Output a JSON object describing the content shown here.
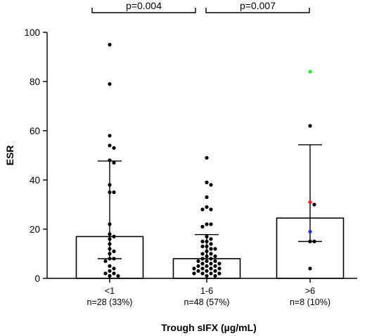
{
  "chart_data": {
    "type": "bar",
    "ylabel": "ESR",
    "xlabel": "Trough sIFX (µg/mL)",
    "ylim": [
      0,
      100
    ],
    "yticks": [
      "0",
      "20",
      "40",
      "60",
      "80",
      "100"
    ],
    "categories": [
      {
        "label": "<1",
        "sublabel": "n=28 (33%)"
      },
      {
        "label": "1-6",
        "sublabel": "n=48 (57%)"
      },
      {
        "label": ">6",
        "sublabel": "n=8 (10%)"
      }
    ],
    "values": [
      17,
      8,
      24.5
    ],
    "error_high": [
      47.7,
      17.8,
      54.3
    ],
    "error_low": [
      8,
      null,
      15
    ],
    "points": [
      [
        95,
        79,
        58,
        54,
        53,
        48,
        47,
        38,
        35,
        35,
        22,
        18,
        17,
        16,
        14,
        12,
        11,
        10,
        8,
        8,
        7,
        5,
        4,
        3,
        2,
        2,
        1,
        1
      ],
      [
        49,
        39,
        38,
        33,
        29,
        28,
        28,
        22,
        22,
        21,
        17,
        16,
        15,
        15,
        14,
        13,
        13,
        12,
        12,
        11,
        10,
        10,
        9,
        9,
        8,
        8,
        7,
        7,
        7,
        6,
        6,
        6,
        5,
        5,
        5,
        4,
        4,
        4,
        4,
        3,
        3,
        3,
        2,
        2,
        2,
        2,
        1,
        1
      ],
      [
        84,
        62,
        31,
        30,
        19,
        15,
        15,
        4
      ]
    ],
    "point_colors": [
      null,
      null,
      [
        "#22ee22",
        null,
        "#ee2222",
        null,
        "#1a2ee8",
        null,
        null,
        null
      ]
    ],
    "significance": [
      {
        "from": 0,
        "to": 1,
        "label": "p=0.004"
      },
      {
        "from": 1,
        "to": 2,
        "label": "p=0.007"
      }
    ]
  }
}
